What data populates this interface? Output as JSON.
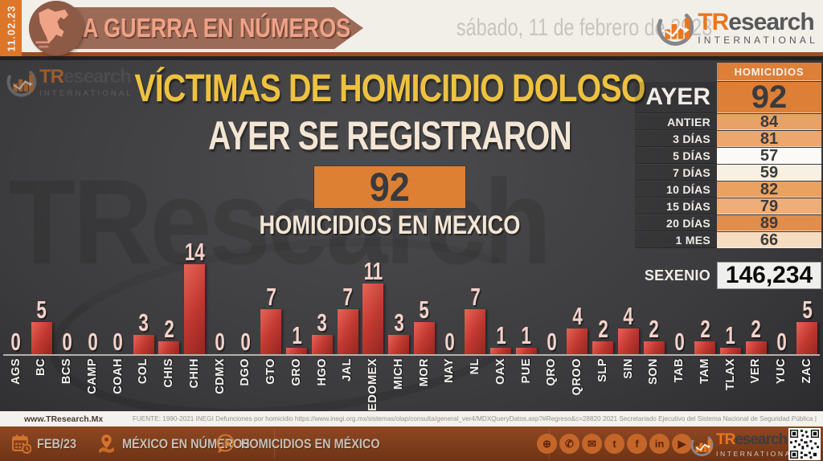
{
  "header": {
    "vertical_date": "11.02.23",
    "banner_title": "LA GUERRA EN NÚMEROS",
    "date_text": "sábado, 11 de febrero de 2023"
  },
  "brand": {
    "name_tr": "TR",
    "name_rest": "esearch",
    "subtitle": "INTERNATIONAL",
    "watermark": "TResearch"
  },
  "main": {
    "title": "VÍCTIMAS DE HOMICIDIO DOLOSO",
    "subtitle": "AYER SE REGISTRARON",
    "big_number": "92",
    "caption": "HOMICIDIOS EN MEXICO"
  },
  "summary_table": {
    "header": "HOMICIDIOS",
    "rows": [
      {
        "label": "AYER",
        "value": "92",
        "bg": "#dd7f37",
        "big": true
      },
      {
        "label": "ANTIER",
        "value": "84",
        "bg": "#e9a265"
      },
      {
        "label": "3 DÍAS",
        "value": "81",
        "bg": "#eba76e"
      },
      {
        "label": "5 DÍAS",
        "value": "57",
        "bg": "#fbfaf7"
      },
      {
        "label": "7 DÍAS",
        "value": "59",
        "bg": "#f7f0e3"
      },
      {
        "label": "10 DÍAS",
        "value": "82",
        "bg": "#eaa263"
      },
      {
        "label": "15 DÍAS",
        "value": "79",
        "bg": "#eeae7a"
      },
      {
        "label": "20 DÍAS",
        "value": "89",
        "bg": "#e28d49"
      },
      {
        "label": "1 MES",
        "value": "66",
        "bg": "#f6dcc1"
      }
    ],
    "sexenio_label": "SEXENIO",
    "sexenio_value": "146,234",
    "sexenio_bg": "#efefed"
  },
  "chart_data": {
    "type": "bar",
    "categories": [
      "AGS",
      "BC",
      "BCS",
      "CAMP",
      "COAH",
      "COL",
      "CHIS",
      "CHIH",
      "CDMX",
      "DGO",
      "GTO",
      "GRO",
      "HGO",
      "JAL",
      "EDOMEX",
      "MICH",
      "MOR",
      "NAY",
      "NL",
      "OAX",
      "PUE",
      "QRO",
      "QROO",
      "SLP",
      "SIN",
      "SON",
      "TAB",
      "TAM",
      "TLAX",
      "VER",
      "YUC",
      "ZAC"
    ],
    "values": [
      0,
      5,
      0,
      0,
      0,
      3,
      2,
      14,
      0,
      0,
      7,
      1,
      3,
      7,
      11,
      3,
      5,
      0,
      7,
      1,
      1,
      0,
      4,
      2,
      4,
      2,
      0,
      2,
      1,
      2,
      0,
      5
    ],
    "title": "",
    "xlabel": "",
    "ylabel": "",
    "ylim": [
      0,
      14
    ],
    "grid": false,
    "legend": false,
    "value_labels": "above bars",
    "bar_color": "#c93b32",
    "value_label_color": "#f5d1c9"
  },
  "source_strip": {
    "site": "www.TResearch.Mx",
    "source": "FUENTE: 1990-2021 INEGI Defunciones por homicidio https://www.inegi.org.mx/sistemas/olap/consulta/general_ver4/MDXQueryDatos.asp?#Regreso&c=28820   2021 Secretariado Ejecutivo del Sistema Nacional de Seguridad Pública |"
  },
  "footer": {
    "period": "FEB/23",
    "links": [
      "MÉXICO EN NÚMEROS",
      "HOMICIDIOS EN MÉXICO"
    ],
    "social_icons": [
      "globe",
      "whatsapp",
      "email",
      "twitter",
      "facebook",
      "linkedin",
      "youtube"
    ]
  },
  "accent_colors": {
    "orange": "#dd7f37",
    "strip_orange": "#dd7628",
    "yellow_title": "#eec23f",
    "cream": "#f4e6d4",
    "bar_red": "#c93b32",
    "footer_brown": "#7c3c1a"
  }
}
